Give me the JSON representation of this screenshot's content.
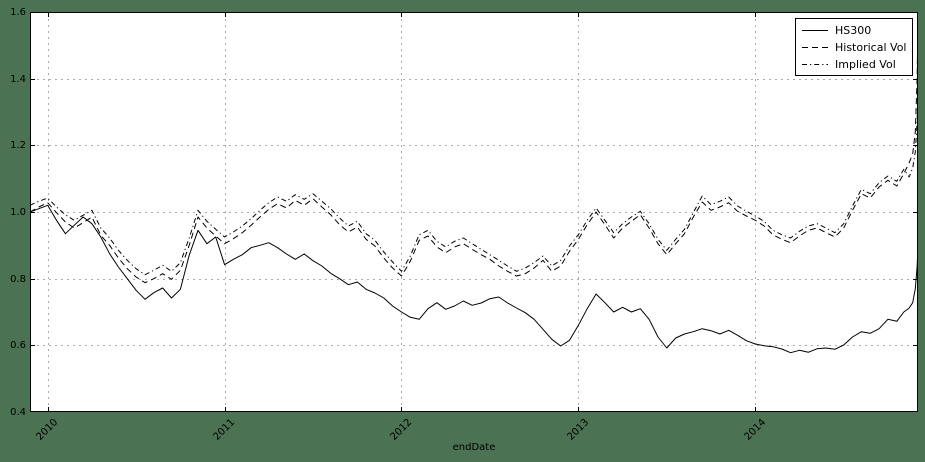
{
  "figure": {
    "background_color": "#4a7253",
    "plot_background": "#ffffff",
    "frame_color": "#000000",
    "grid_color": "#aaaaaa",
    "tick_color": "#000000"
  },
  "axes": {
    "x_tick_labels": [
      "2010",
      "2011",
      "2012",
      "2013",
      "2014"
    ],
    "y_tick_labels": [
      "0.4",
      "0.6",
      "0.8",
      "1.0",
      "1.2",
      "1.4",
      "1.6"
    ]
  },
  "legend": {
    "position": "upper right",
    "items": [
      {
        "label": "HS300",
        "linestyle": "solid"
      },
      {
        "label": "Historical Vol",
        "linestyle": "dashed"
      },
      {
        "label": "Implied Vol",
        "linestyle": "dashdot"
      }
    ]
  },
  "chart_data": {
    "type": "line",
    "title": "",
    "xlabel": "endDate",
    "ylabel": "",
    "xlim": [
      2009.9,
      2014.92
    ],
    "ylim": [
      0.4,
      1.6
    ],
    "grid": true,
    "grid_style": "dashed",
    "legend_position": "upper right",
    "x_ticks": [
      2010,
      2011,
      2012,
      2013,
      2014
    ],
    "y_ticks": [
      0.4,
      0.6,
      0.8,
      1.0,
      1.2,
      1.4,
      1.6
    ],
    "line_color": "#000000",
    "x": [
      2009.9,
      2009.95,
      2010.0,
      2010.05,
      2010.1,
      2010.15,
      2010.2,
      2010.25,
      2010.3,
      2010.35,
      2010.4,
      2010.45,
      2010.5,
      2010.55,
      2010.6,
      2010.65,
      2010.7,
      2010.75,
      2010.8,
      2010.85,
      2010.9,
      2010.95,
      2011.0,
      2011.05,
      2011.1,
      2011.15,
      2011.2,
      2011.25,
      2011.3,
      2011.35,
      2011.4,
      2011.45,
      2011.5,
      2011.55,
      2011.6,
      2011.65,
      2011.7,
      2011.75,
      2011.8,
      2011.85,
      2011.9,
      2011.95,
      2012.0,
      2012.05,
      2012.1,
      2012.15,
      2012.2,
      2012.25,
      2012.3,
      2012.35,
      2012.4,
      2012.45,
      2012.5,
      2012.55,
      2012.6,
      2012.65,
      2012.7,
      2012.75,
      2012.8,
      2012.85,
      2012.9,
      2012.95,
      2013.0,
      2013.05,
      2013.1,
      2013.15,
      2013.2,
      2013.25,
      2013.3,
      2013.35,
      2013.4,
      2013.45,
      2013.5,
      2013.55,
      2013.6,
      2013.65,
      2013.7,
      2013.75,
      2013.8,
      2013.85,
      2013.9,
      2013.95,
      2014.0,
      2014.05,
      2014.1,
      2014.15,
      2014.2,
      2014.25,
      2014.3,
      2014.35,
      2014.4,
      2014.45,
      2014.5,
      2014.55,
      2014.6,
      2014.65,
      2014.7,
      2014.75,
      2014.8,
      2014.84,
      2014.87,
      2014.89,
      2014.905,
      2014.915,
      2014.92
    ],
    "series": [
      {
        "name": "HS300",
        "linestyle": "solid",
        "color": "#000000",
        "y": [
          1.0,
          1.01,
          1.02,
          0.975,
          0.935,
          0.96,
          0.985,
          0.965,
          0.925,
          0.875,
          0.835,
          0.8,
          0.765,
          0.738,
          0.758,
          0.772,
          0.742,
          0.768,
          0.87,
          0.945,
          0.905,
          0.925,
          0.842,
          0.858,
          0.872,
          0.893,
          0.9,
          0.908,
          0.893,
          0.874,
          0.858,
          0.874,
          0.854,
          0.838,
          0.816,
          0.8,
          0.782,
          0.79,
          0.768,
          0.757,
          0.742,
          0.718,
          0.7,
          0.684,
          0.678,
          0.71,
          0.728,
          0.708,
          0.718,
          0.733,
          0.72,
          0.727,
          0.74,
          0.745,
          0.727,
          0.712,
          0.698,
          0.678,
          0.648,
          0.618,
          0.598,
          0.615,
          0.66,
          0.71,
          0.754,
          0.728,
          0.7,
          0.714,
          0.7,
          0.71,
          0.678,
          0.625,
          0.592,
          0.622,
          0.634,
          0.641,
          0.65,
          0.644,
          0.634,
          0.645,
          0.63,
          0.614,
          0.604,
          0.599,
          0.596,
          0.589,
          0.578,
          0.585,
          0.579,
          0.59,
          0.592,
          0.588,
          0.601,
          0.625,
          0.641,
          0.636,
          0.65,
          0.678,
          0.672,
          0.7,
          0.712,
          0.728,
          0.77,
          0.835,
          0.9
        ]
      },
      {
        "name": "Historical Vol",
        "linestyle": "dashed",
        "color": "#000000",
        "y": [
          1.0,
          1.015,
          1.028,
          0.998,
          0.97,
          0.952,
          0.968,
          0.985,
          0.93,
          0.9,
          0.862,
          0.83,
          0.805,
          0.788,
          0.8,
          0.815,
          0.798,
          0.825,
          0.9,
          0.985,
          0.952,
          0.928,
          0.905,
          0.92,
          0.938,
          0.96,
          0.985,
          1.008,
          1.025,
          1.012,
          1.035,
          1.02,
          1.04,
          1.015,
          0.992,
          0.962,
          0.94,
          0.955,
          0.918,
          0.898,
          0.862,
          0.832,
          0.808,
          0.852,
          0.915,
          0.928,
          0.895,
          0.878,
          0.895,
          0.905,
          0.888,
          0.872,
          0.858,
          0.838,
          0.822,
          0.808,
          0.815,
          0.832,
          0.855,
          0.822,
          0.838,
          0.882,
          0.918,
          0.962,
          1.0,
          0.962,
          0.922,
          0.952,
          0.972,
          0.992,
          0.952,
          0.905,
          0.872,
          0.905,
          0.935,
          0.985,
          1.03,
          1.005,
          1.015,
          1.028,
          1.002,
          0.988,
          0.975,
          0.958,
          0.932,
          0.918,
          0.908,
          0.928,
          0.945,
          0.952,
          0.938,
          0.925,
          0.952,
          1.005,
          1.055,
          1.042,
          1.075,
          1.095,
          1.078,
          1.115,
          1.148,
          1.175,
          1.24,
          1.4,
          1.57
        ]
      },
      {
        "name": "Implied Vol",
        "linestyle": "dashdot",
        "color": "#000000",
        "y": [
          1.02,
          1.032,
          1.042,
          1.015,
          0.992,
          0.975,
          0.99,
          1.005,
          0.952,
          0.922,
          0.885,
          0.855,
          0.83,
          0.812,
          0.825,
          0.84,
          0.822,
          0.848,
          0.922,
          1.005,
          0.972,
          0.948,
          0.925,
          0.94,
          0.958,
          0.98,
          1.005,
          1.028,
          1.045,
          1.032,
          1.052,
          1.038,
          1.055,
          1.032,
          1.01,
          0.982,
          0.958,
          0.972,
          0.935,
          0.915,
          0.88,
          0.85,
          0.822,
          0.868,
          0.932,
          0.945,
          0.912,
          0.895,
          0.912,
          0.922,
          0.905,
          0.888,
          0.872,
          0.855,
          0.838,
          0.822,
          0.832,
          0.848,
          0.868,
          0.838,
          0.855,
          0.898,
          0.932,
          0.975,
          1.012,
          0.975,
          0.938,
          0.965,
          0.985,
          1.002,
          0.965,
          0.918,
          0.885,
          0.918,
          0.948,
          0.998,
          1.048,
          1.022,
          1.032,
          1.045,
          1.018,
          1.002,
          0.988,
          0.972,
          0.945,
          0.932,
          0.922,
          0.942,
          0.958,
          0.965,
          0.952,
          0.938,
          0.965,
          1.018,
          1.068,
          1.055,
          1.088,
          1.108,
          1.092,
          1.128,
          1.105,
          1.132,
          1.18,
          1.27,
          1.38
        ]
      }
    ]
  }
}
